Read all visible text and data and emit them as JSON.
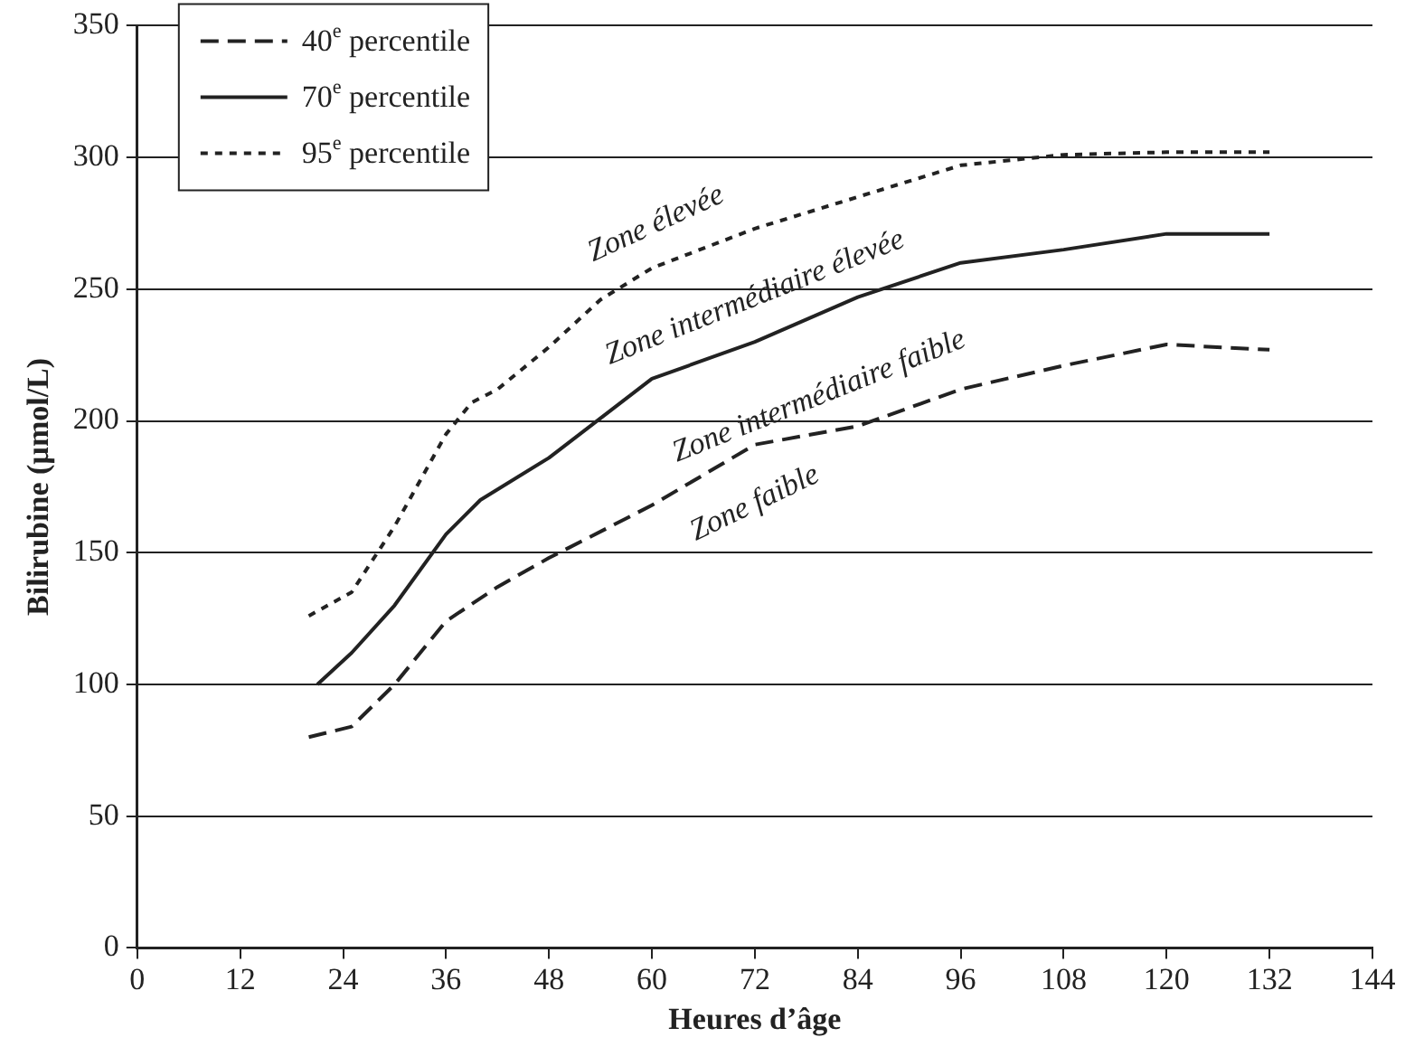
{
  "chart_data": {
    "type": "line",
    "xlabel": "Heures d’âge",
    "ylabel": "Bilirubine (µmol/L)",
    "xlim": [
      0,
      144
    ],
    "xticks": [
      0,
      12,
      24,
      36,
      48,
      60,
      72,
      84,
      96,
      108,
      120,
      132,
      144
    ],
    "ylim": [
      0,
      350
    ],
    "yticks": [
      0,
      50,
      100,
      150,
      200,
      250,
      300,
      350
    ],
    "grid": "y",
    "legend": "top left",
    "marker": "none",
    "series": [
      {
        "name": "40$^{e}$ percentile",
        "color": "#222222",
        "line_style": "dashed",
        "x": [
          20,
          25,
          30,
          36,
          42,
          48,
          60,
          72,
          84,
          96,
          108,
          120,
          132
        ],
        "values": [
          80,
          84,
          100,
          124,
          137,
          148,
          168,
          191,
          198,
          212,
          221,
          229,
          227
        ]
      },
      {
        "name": "70$^{e}$ percentile",
        "color": "#222222",
        "line_style": "solid",
        "x": [
          21,
          25,
          30,
          36,
          40,
          48,
          60,
          72,
          84,
          96,
          108,
          120,
          132
        ],
        "values": [
          100,
          112,
          130,
          157,
          170,
          186,
          216,
          230,
          247,
          260,
          265,
          271,
          271
        ]
      },
      {
        "name": "95$^{e}$ percentile",
        "color": "#222222",
        "line_style": "dotted",
        "x": [
          20,
          25,
          30,
          36,
          39,
          42,
          48,
          54,
          60,
          72,
          84,
          96,
          108,
          120,
          132
        ],
        "values": [
          126,
          135,
          160,
          195,
          207,
          212,
          228,
          246,
          258,
          273,
          285,
          297,
          301,
          302,
          302
        ]
      }
    ],
    "annotations": [
      "Zone élevée",
      "Zone intermédiaire élevée",
      "Zone intermédiaire faible",
      "Zone faible"
    ]
  }
}
